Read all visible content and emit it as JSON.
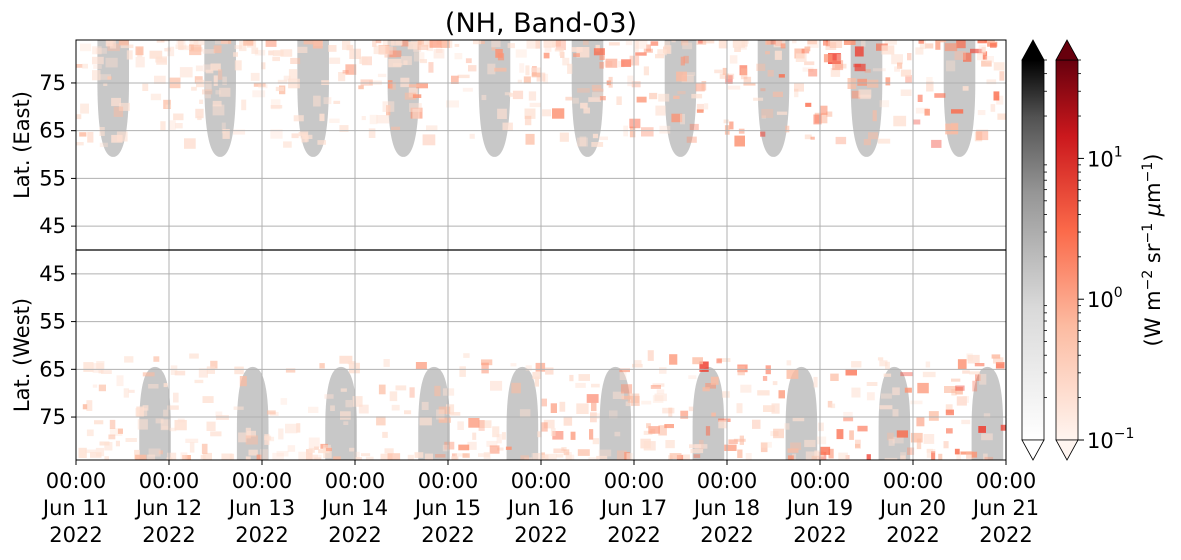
{
  "chart_data": {
    "type": "heatmap",
    "title": "(NH, Band-03)",
    "ylabel_top": "Lat. (East)",
    "ylabel_bottom": "Lat. (West)",
    "x_ticks": [
      {
        "line1": "00:00",
        "line2": "Jun 11",
        "line3": "2022"
      },
      {
        "line1": "00:00",
        "line2": "Jun 12",
        "line3": "2022"
      },
      {
        "line1": "00:00",
        "line2": "Jun 13",
        "line3": "2022"
      },
      {
        "line1": "00:00",
        "line2": "Jun 14",
        "line3": "2022"
      },
      {
        "line1": "00:00",
        "line2": "Jun 15",
        "line3": "2022"
      },
      {
        "line1": "00:00",
        "line2": "Jun 16",
        "line3": "2022"
      },
      {
        "line1": "00:00",
        "line2": "Jun 17",
        "line3": "2022"
      },
      {
        "line1": "00:00",
        "line2": "Jun 18",
        "line3": "2022"
      },
      {
        "line1": "00:00",
        "line2": "Jun 19",
        "line3": "2022"
      },
      {
        "line1": "00:00",
        "line2": "Jun 20",
        "line3": "2022"
      },
      {
        "line1": "00:00",
        "line2": "Jun 21",
        "line3": "2022"
      }
    ],
    "x_range": [
      "2022-06-11 00:00",
      "2022-06-21 00:00"
    ],
    "y_ticks_top": [
      45,
      55,
      65,
      75
    ],
    "y_ticks_bottom": [
      75,
      65,
      55,
      45
    ],
    "lat_range": [
      40,
      84
    ],
    "grid": true,
    "colorbar": {
      "label": "(W m$^{-2}$ sr$^{-1}$ $\\mu$m$^{-1}$)",
      "label_parts": [
        "(W m",
        "−2",
        " sr",
        "−1",
        " ",
        "μ",
        "m",
        "−1",
        ")"
      ],
      "scale": "log",
      "range": [
        0.1,
        50
      ],
      "tick_labels": [
        {
          "base": "10",
          "exp": "−1",
          "value": 0.1
        },
        {
          "base": "10",
          "exp": "0",
          "value": 1
        },
        {
          "base": "10",
          "exp": "1",
          "value": 10
        }
      ],
      "cmaps": [
        "Greys",
        "Reds"
      ],
      "extend": "both",
      "colors": {
        "greys_low": "#ffffff",
        "greys_high": "#000000",
        "reds_low": "#fff5f0",
        "reds_high": "#67000d"
      }
    },
    "colors": {
      "nodata_gray": "#c8c8c8",
      "red_mid": "#fb6a4a",
      "red_dark": "#ef3b2c",
      "grid": "#b0b0b0"
    },
    "nodata_lobes_top_days": [
      0.4,
      1.55,
      2.55,
      3.52,
      4.5,
      5.5,
      6.5,
      7.5,
      8.5,
      9.5
    ],
    "nodata_lobes_bottom_days": [
      0.85,
      1.9,
      2.85,
      3.85,
      4.8,
      5.8,
      6.8,
      7.8,
      8.8,
      9.8
    ]
  }
}
